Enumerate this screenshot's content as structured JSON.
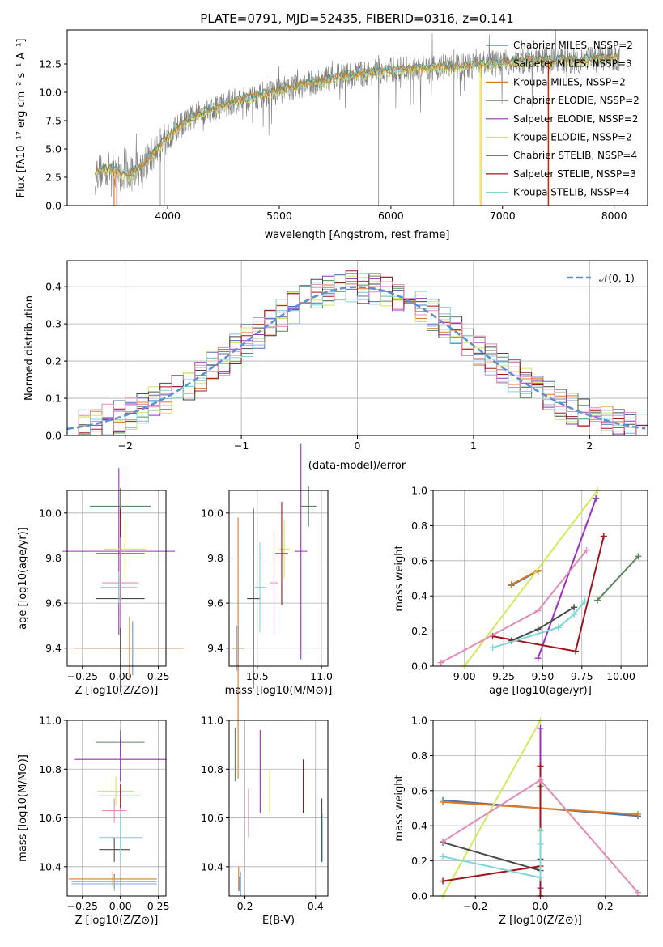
{
  "figure": {
    "title": "PLATE=0791, MJD=52435, FIBERID=0316, z=0.141"
  },
  "colors": {
    "chabrier_miles": "#4c72b0",
    "salpeter_miles": "#8fb3d9",
    "kroupa_miles": "#e07b1f",
    "chabrier_elodie": "#5a8a5a",
    "salpeter_elodie": "#9b2fbf",
    "kroupa_elodie": "#d4e85a",
    "chabrier_stelib": "#4a4a4a",
    "salpeter_stelib": "#a3151b",
    "kroupa_stelib": "#7fd6d9",
    "observed": "#808080",
    "normal_curve": "#5b8fd6",
    "pink": "#e58ab8"
  },
  "chart_data": [
    {
      "id": "spectrum",
      "type": "line",
      "title": "PLATE=0791, MJD=52435, FIBERID=0316, z=0.141",
      "xlabel": "wavelength [Angstrom, rest frame]",
      "ylabel": "Flux [fλ10⁻¹⁷ erg cm⁻² s⁻¹ A⁻¹]",
      "xlim": [
        3100,
        8300
      ],
      "ylim": [
        0,
        15.5
      ],
      "xticks": [
        "4000",
        "5000",
        "6000",
        "7000",
        "8000"
      ],
      "yticks": [
        "0.0",
        "2.5",
        "5.0",
        "7.5",
        "10.0",
        "12.5"
      ],
      "legend_position": "top-right",
      "legend": [
        {
          "label": "Chabrier MILES, NSSP=2",
          "color": "#4c72b0"
        },
        {
          "label": "Salpeter MILES, NSSP=3",
          "color": "#8fb3d9"
        },
        {
          "label": "Kroupa MILES, NSSP=2",
          "color": "#e07b1f"
        },
        {
          "label": "Chabrier ELODIE, NSSP=2",
          "color": "#5a8a5a"
        },
        {
          "label": "Salpeter ELODIE, NSSP=2",
          "color": "#9b2fbf"
        },
        {
          "label": "Kroupa ELODIE, NSSP=2",
          "color": "#d4e85a"
        },
        {
          "label": "Chabrier STELIB, NSSP=4",
          "color": "#4a4a4a"
        },
        {
          "label": "Salpeter STELIB, NSSP=3",
          "color": "#a3151b"
        },
        {
          "label": "Kroupa STELIB, NSSP=4",
          "color": "#7fd6d9"
        }
      ],
      "continuum": [
        [
          3350,
          3.0
        ],
        [
          3500,
          3.2
        ],
        [
          3650,
          2.6
        ],
        [
          3800,
          3.8
        ],
        [
          3950,
          5.5
        ],
        [
          4100,
          7.0
        ],
        [
          4300,
          8.2
        ],
        [
          4600,
          9.2
        ],
        [
          4900,
          9.9
        ],
        [
          5200,
          10.6
        ],
        [
          5500,
          11.3
        ],
        [
          5800,
          11.7
        ],
        [
          6100,
          12.0
        ],
        [
          6400,
          12.2
        ],
        [
          6700,
          12.3
        ],
        [
          7000,
          12.6
        ],
        [
          7300,
          12.8
        ],
        [
          7600,
          12.8
        ],
        [
          7900,
          12.9
        ],
        [
          8050,
          13.0
        ]
      ]
    },
    {
      "id": "residuals",
      "type": "line",
      "xlabel": "(data-model)/error",
      "ylabel": "Normed distribution",
      "xlim": [
        -2.5,
        2.5
      ],
      "ylim": [
        0,
        0.47
      ],
      "xticks": [
        "−2",
        "−1",
        "0",
        "1",
        "2"
      ],
      "yticks": [
        "0.0",
        "0.1",
        "0.2",
        "0.3",
        "0.4"
      ],
      "grid": true,
      "legend_position": "top-right",
      "legend": [
        {
          "label": "𝒩(0, 1)",
          "color": "#5b8fd6"
        }
      ],
      "bin_width": 0.1
    },
    {
      "id": "age_vs_Z",
      "type": "scatter",
      "xlabel": "Z [log10(Z/Z⊙)]",
      "ylabel": "age  [log10(age/yr)]",
      "xlim": [
        -0.35,
        0.3
      ],
      "ylim": [
        9.32,
        10.1
      ],
      "xticks": [
        -0.25,
        0.0,
        0.25
      ],
      "xtick_labels": [
        "−0.25",
        "0.00",
        "0.25"
      ],
      "yticks": [
        9.4,
        9.6,
        9.8,
        10.0
      ],
      "ytick_labels": [
        "9.4",
        "9.6",
        "9.8",
        "10.0"
      ],
      "grid": true,
      "points": [
        {
          "series": "Chabrier MILES",
          "x": 0.08,
          "xerr": 0.33,
          "y": 9.4,
          "yerr": 0.12,
          "color": "#4c72b0"
        },
        {
          "series": "Salpeter MILES",
          "x": 0.08,
          "xerr": 0.22,
          "y": 9.4,
          "yerr": 0.12,
          "color": "#8fb3d9"
        },
        {
          "series": "Kroupa MILES",
          "x": 0.06,
          "xerr": 0.36,
          "y": 9.4,
          "yerr": 0.14,
          "color": "#e07b1f"
        },
        {
          "series": "Chabrier ELODIE",
          "x": 0.0,
          "xerr": 0.2,
          "y": 10.03,
          "yerr": 0.08,
          "color": "#5a8a5a"
        },
        {
          "series": "Salpeter ELODIE",
          "x": -0.01,
          "xerr": 0.37,
          "y": 9.83,
          "yerr": 0.37,
          "color": "#9b2fbf"
        },
        {
          "series": "Kroupa ELODIE",
          "x": 0.03,
          "xerr": 0.14,
          "y": 9.84,
          "yerr": 0.13,
          "color": "#d4e85a"
        },
        {
          "series": "Chabrier STELIB",
          "x": 0.0,
          "xerr": 0.16,
          "y": 9.62,
          "yerr": 0.4,
          "color": "#4a4a4a"
        },
        {
          "series": "Salpeter STELIB",
          "x": 0.0,
          "xerr": 0.16,
          "y": 9.82,
          "yerr": 0.2,
          "color": "#a3151b"
        },
        {
          "series": "Kroupa STELIB",
          "x": -0.01,
          "xerr": 0.12,
          "y": 9.67,
          "yerr": 0.07,
          "color": "#7fd6d9"
        },
        {
          "series": "Pink",
          "x": 0.0,
          "xerr": 0.12,
          "y": 9.69,
          "yerr": 0.2,
          "color": "#e58ab8"
        }
      ]
    },
    {
      "id": "age_vs_mass",
      "type": "scatter",
      "xlabel": "mass [log10(M/M⊙)]",
      "ylabel": "",
      "xlim": [
        10.28,
        11.05
      ],
      "ylim": [
        9.32,
        10.1
      ],
      "xticks": [
        10.5,
        11.0
      ],
      "xtick_labels": [
        "10.5",
        "11.0"
      ],
      "yticks": [
        9.4,
        9.6,
        9.8,
        10.0
      ],
      "ytick_labels": [
        "9.4",
        "9.6",
        "9.8",
        "10.0"
      ],
      "grid": true,
      "points": [
        {
          "series": "Chabrier MILES",
          "x": 10.35,
          "xerr": 0.05,
          "y": 9.4,
          "yerr": 0.1,
          "color": "#4c72b0"
        },
        {
          "series": "Salpeter MILES",
          "x": 10.34,
          "xerr": 0.03,
          "y": 9.4,
          "yerr": 0.1,
          "color": "#8fb3d9"
        },
        {
          "series": "Kroupa MILES",
          "x": 10.35,
          "xerr": 0.05,
          "y": 9.4,
          "yerr": 0.58,
          "color": "#e07b1f"
        },
        {
          "series": "Chabrier ELODIE",
          "x": 10.9,
          "xerr": 0.06,
          "y": 10.03,
          "yerr": 0.09,
          "color": "#5a8a5a"
        },
        {
          "series": "Salpeter ELODIE",
          "x": 10.84,
          "xerr": 0.05,
          "y": 9.83,
          "yerr": 0.48,
          "color": "#9b2fbf"
        },
        {
          "series": "Kroupa ELODIE",
          "x": 10.71,
          "xerr": 0.04,
          "y": 9.84,
          "yerr": 0.13,
          "color": "#d4e85a"
        },
        {
          "series": "Chabrier STELIB",
          "x": 10.47,
          "xerr": 0.05,
          "y": 9.62,
          "yerr": 0.4,
          "color": "#4a4a4a"
        },
        {
          "series": "Salpeter STELIB",
          "x": 10.69,
          "xerr": 0.05,
          "y": 9.82,
          "yerr": 0.23,
          "color": "#a3151b"
        },
        {
          "series": "Kroupa STELIB",
          "x": 10.52,
          "xerr": 0.05,
          "y": 9.67,
          "yerr": 0.2,
          "color": "#7fd6d9"
        },
        {
          "series": "Pink",
          "x": 10.63,
          "xerr": 0.03,
          "y": 9.69,
          "yerr": 0.23,
          "color": "#e58ab8"
        }
      ]
    },
    {
      "id": "massweight_vs_age",
      "type": "line",
      "xlabel": "age  [log10(age/yr)]",
      "ylabel": "mass weight",
      "xlim": [
        8.8,
        10.17
      ],
      "ylim": [
        0,
        1
      ],
      "xticks": [
        9.0,
        9.25,
        9.5,
        9.75,
        10.0
      ],
      "xtick_labels": [
        "9.00",
        "9.25",
        "9.50",
        "9.75",
        "10.00"
      ],
      "yticks": [
        0,
        0.2,
        0.4,
        0.6,
        0.8,
        1.0
      ],
      "ytick_labels": [
        "0.0",
        "0.2",
        "0.4",
        "0.6",
        "0.8",
        "1.0"
      ],
      "grid": true,
      "series": [
        {
          "name": "Chabrier MILES",
          "color": "#4c72b0",
          "x": [
            9.3,
            9.47
          ],
          "y": [
            0.46,
            0.54
          ]
        },
        {
          "name": "Kroupa MILES",
          "color": "#e07b1f",
          "x": [
            9.3,
            9.47
          ],
          "y": [
            0.465,
            0.545
          ]
        },
        {
          "name": "Chabrier ELODIE",
          "color": "#5a8a5a",
          "x": [
            9.85,
            10.11
          ],
          "y": [
            0.375,
            0.625
          ]
        },
        {
          "name": "Salpeter ELODIE",
          "color": "#9b2fbf",
          "x": [
            9.47,
            9.84
          ],
          "y": [
            0.045,
            0.955
          ]
        },
        {
          "name": "Kroupa ELODIE",
          "color": "#d4e85a",
          "x": [
            9.0,
            9.85
          ],
          "y": [
            0.0,
            1.0
          ]
        },
        {
          "name": "Chabrier STELIB",
          "color": "#4a4a4a",
          "x": [
            9.3,
            9.47,
            9.7
          ],
          "y": [
            0.145,
            0.21,
            0.335
          ]
        },
        {
          "name": "Salpeter STELIB",
          "color": "#a3151b",
          "x": [
            9.18,
            9.71,
            9.89
          ],
          "y": [
            0.17,
            0.085,
            0.74
          ]
        },
        {
          "name": "Kroupa STELIB",
          "color": "#7fd6d9",
          "x": [
            9.18,
            9.6,
            9.7,
            9.77
          ],
          "y": [
            0.105,
            0.22,
            0.295,
            0.37
          ]
        },
        {
          "name": "Pink",
          "color": "#e58ab8",
          "x": [
            8.85,
            9.47,
            9.78
          ],
          "y": [
            0.02,
            0.315,
            0.66
          ]
        }
      ]
    },
    {
      "id": "mass_vs_Z",
      "type": "scatter",
      "xlabel": "Z [log10(Z/Z⊙)]",
      "ylabel": "mass [log10(M/M⊙)]",
      "xlim": [
        -0.35,
        0.3
      ],
      "ylim": [
        10.28,
        11.0
      ],
      "xticks": [
        -0.25,
        0.0,
        0.25
      ],
      "xtick_labels": [
        "−0.25",
        "0.00",
        "0.25"
      ],
      "yticks": [
        10.4,
        10.6,
        10.8,
        11.0
      ],
      "ytick_labels": [
        "10.4",
        "10.6",
        "10.8",
        "11.0"
      ],
      "grid": true,
      "points": [
        {
          "series": "Chabrier MILES",
          "x": -0.04,
          "xerr": 0.28,
          "y": 10.34,
          "yerr": 0.03,
          "color": "#4c72b0"
        },
        {
          "series": "Salpeter MILES",
          "x": -0.04,
          "xerr": 0.28,
          "y": 10.33,
          "yerr": 0.03,
          "color": "#8fb3d9"
        },
        {
          "series": "Kroupa MILES",
          "x": -0.05,
          "xerr": 0.29,
          "y": 10.35,
          "yerr": 0.03,
          "color": "#e07b1f"
        },
        {
          "series": "Chabrier ELODIE",
          "x": 0.0,
          "xerr": 0.16,
          "y": 10.91,
          "yerr": 0.05,
          "color": "#5a8a5a"
        },
        {
          "series": "Salpeter ELODIE",
          "x": 0.0,
          "xerr": 0.3,
          "y": 10.84,
          "yerr": 0.09,
          "color": "#9b2fbf"
        },
        {
          "series": "Kroupa ELODIE",
          "x": -0.03,
          "xerr": 0.12,
          "y": 10.71,
          "yerr": 0.06,
          "color": "#d4e85a"
        },
        {
          "series": "Chabrier STELIB",
          "x": -0.04,
          "xerr": 0.1,
          "y": 10.47,
          "yerr": 0.05,
          "color": "#4a4a4a"
        },
        {
          "series": "Salpeter STELIB",
          "x": 0.0,
          "xerr": 0.13,
          "y": 10.69,
          "yerr": 0.05,
          "color": "#a3151b"
        },
        {
          "series": "Kroupa STELIB",
          "x": 0.0,
          "xerr": 0.14,
          "y": 10.52,
          "yerr": 0.1,
          "color": "#7fd6d9"
        },
        {
          "series": "Pink",
          "x": -0.04,
          "xerr": 0.08,
          "y": 10.63,
          "yerr": 0.05,
          "color": "#e58ab8"
        }
      ]
    },
    {
      "id": "mass_vs_ebv",
      "type": "scatter",
      "xlabel": "E(B-V)",
      "ylabel": "",
      "xlim": [
        0.155,
        0.435
      ],
      "ylim": [
        10.28,
        11.0
      ],
      "xticks": [
        0.2,
        0.4
      ],
      "xtick_labels": [
        "0.2",
        "0.4"
      ],
      "yticks": [
        10.4,
        10.6,
        10.8,
        11.0
      ],
      "ytick_labels": [
        "10.4",
        "10.6",
        "10.8",
        "11.0"
      ],
      "grid": true,
      "points": [
        {
          "series": "Chabrier MILES",
          "x": 0.185,
          "y": 10.33,
          "yerr": 0.03,
          "color": "#4c72b0"
        },
        {
          "series": "Salpeter MILES",
          "x": 0.188,
          "y": 10.33,
          "yerr": 0.05,
          "color": "#8fb3d9"
        },
        {
          "series": "Kroupa MILES",
          "x": 0.182,
          "y": 10.35,
          "yerr": 0.05,
          "color": "#e07b1f"
        },
        {
          "series": "Chabrier ELODIE",
          "x": 0.172,
          "y": 10.86,
          "yerr": 0.11,
          "color": "#5a8a5a"
        },
        {
          "series": "Salpeter ELODIE",
          "x": 0.243,
          "y": 10.79,
          "yerr": 0.17,
          "color": "#9b2fbf"
        },
        {
          "series": "Kroupa ELODIE",
          "x": 0.27,
          "y": 10.71,
          "yerr": 0.09,
          "color": "#d4e85a"
        },
        {
          "series": "Chabrier STELIB",
          "x": 0.418,
          "y": 10.55,
          "yerr": 0.13,
          "color": "#4a4a4a"
        },
        {
          "series": "Salpeter STELIB",
          "x": 0.365,
          "y": 10.73,
          "yerr": 0.11,
          "color": "#a3151b"
        },
        {
          "series": "Kroupa STELIB",
          "x": 0.42,
          "y": 10.52,
          "yerr": 0.1,
          "color": "#7fd6d9"
        },
        {
          "series": "Pink",
          "x": 0.21,
          "y": 10.62,
          "yerr": 0.1,
          "color": "#e58ab8"
        }
      ]
    },
    {
      "id": "massweight_vs_Z",
      "type": "line",
      "xlabel": "Z [log10(Z/Z⊙)]",
      "ylabel": "mass weight",
      "xlim": [
        -0.33,
        0.33
      ],
      "ylim": [
        0,
        1
      ],
      "xticks": [
        -0.2,
        0.0,
        0.2
      ],
      "xtick_labels": [
        "−0.2",
        "0.0",
        "0.2"
      ],
      "yticks": [
        0,
        0.2,
        0.4,
        0.6,
        0.8,
        1.0
      ],
      "ytick_labels": [
        "0.0",
        "0.2",
        "0.4",
        "0.6",
        "0.8",
        "1.0"
      ],
      "grid": true,
      "series": [
        {
          "name": "Chabrier MILES",
          "color": "#4c72b0",
          "x": [
            -0.3,
            0.3
          ],
          "y": [
            0.545,
            0.455
          ]
        },
        {
          "name": "Kroupa MILES",
          "color": "#e07b1f",
          "x": [
            -0.3,
            0.3
          ],
          "y": [
            0.535,
            0.465
          ]
        },
        {
          "name": "Chabrier ELODIE",
          "color": "#5a8a5a",
          "x": [
            0.0,
            0.0
          ],
          "y": [
            0.375,
            0.625
          ]
        },
        {
          "name": "Salpeter ELODIE",
          "color": "#9b2fbf",
          "x": [
            0.0,
            0.0
          ],
          "y": [
            0.045,
            0.955
          ]
        },
        {
          "name": "Kroupa ELODIE",
          "color": "#d4e85a",
          "x": [
            -0.3,
            0.0
          ],
          "y": [
            0.0,
            1.0
          ]
        },
        {
          "name": "Chabrier STELIB",
          "color": "#4a4a4a",
          "x": [
            -0.3,
            0.0,
            0.0
          ],
          "y": [
            0.305,
            0.145,
            0.21
          ]
        },
        {
          "name": "Salpeter STELIB",
          "color": "#a3151b",
          "x": [
            -0.3,
            0.0,
            0.0,
            0.0
          ],
          "y": [
            0.085,
            0.17,
            0.74,
            0.0
          ]
        },
        {
          "name": "Kroupa STELIB",
          "color": "#7fd6d9",
          "x": [
            -0.3,
            0.0,
            0.0,
            0.0
          ],
          "y": [
            0.225,
            0.105,
            0.295,
            0.37
          ]
        },
        {
          "name": "Pink",
          "color": "#e58ab8",
          "x": [
            -0.3,
            0.0,
            0.3
          ],
          "y": [
            0.31,
            0.66,
            0.02
          ]
        }
      ]
    }
  ]
}
